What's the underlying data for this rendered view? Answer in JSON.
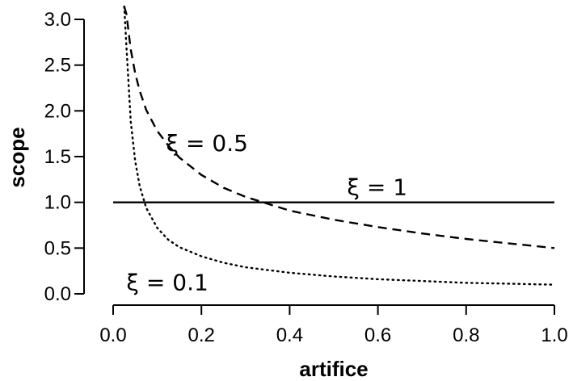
{
  "chart_data": {
    "type": "line",
    "title": "",
    "xlabel": "artifice",
    "ylabel": "scope",
    "xlim": [
      0,
      1
    ],
    "ylim": [
      0,
      3.1
    ],
    "xticks": [
      0,
      0.2,
      0.4,
      0.6,
      0.8,
      1
    ],
    "xtick_labels": [
      "0.0",
      "0.2",
      "0.4",
      "0.6",
      "0.8",
      "1.0"
    ],
    "yticks": [
      0,
      0.5,
      1,
      1.5,
      2,
      2.5,
      3
    ],
    "ytick_labels": [
      "0.0",
      "0.5",
      "1.0",
      "1.5",
      "2.0",
      "2.5",
      "3.0"
    ],
    "grid": false,
    "legend": "none",
    "series": [
      {
        "name": "ξ = 0.1",
        "line_style": "dotted",
        "x": [
          0.025,
          0.03,
          0.04,
          0.05,
          0.06,
          0.075,
          0.1,
          0.125,
          0.15,
          0.2,
          0.25,
          0.3,
          0.4,
          0.5,
          0.6,
          0.7,
          0.8,
          0.9,
          1.0
        ],
        "y": [
          3.3,
          2.71,
          1.88,
          1.45,
          1.18,
          0.94,
          0.72,
          0.59,
          0.51,
          0.41,
          0.34,
          0.29,
          0.23,
          0.19,
          0.16,
          0.14,
          0.12,
          0.11,
          0.1
        ]
      },
      {
        "name": "ξ = 0.5",
        "line_style": "dashed",
        "x": [
          0.025,
          0.03,
          0.04,
          0.05,
          0.06,
          0.075,
          0.1,
          0.125,
          0.15,
          0.2,
          0.25,
          0.3,
          0.4,
          0.5,
          0.6,
          0.7,
          0.8,
          0.9,
          1.0
        ],
        "y": [
          3.2,
          3.06,
          2.67,
          2.41,
          2.22,
          2.01,
          1.78,
          1.62,
          1.49,
          1.3,
          1.16,
          1.06,
          0.91,
          0.81,
          0.73,
          0.66,
          0.6,
          0.55,
          0.5
        ]
      },
      {
        "name": "ξ = 1",
        "line_style": "solid",
        "x": [
          0,
          1
        ],
        "y": [
          1,
          1
        ]
      }
    ],
    "annotations": [
      {
        "text": "ξ = 0.5",
        "x": 0.12,
        "y": 1.65
      },
      {
        "text": "ξ = 1",
        "x": 0.53,
        "y": 1.17
      },
      {
        "text": "ξ = 0.1",
        "x": 0.03,
        "y": 0.13
      }
    ]
  }
}
